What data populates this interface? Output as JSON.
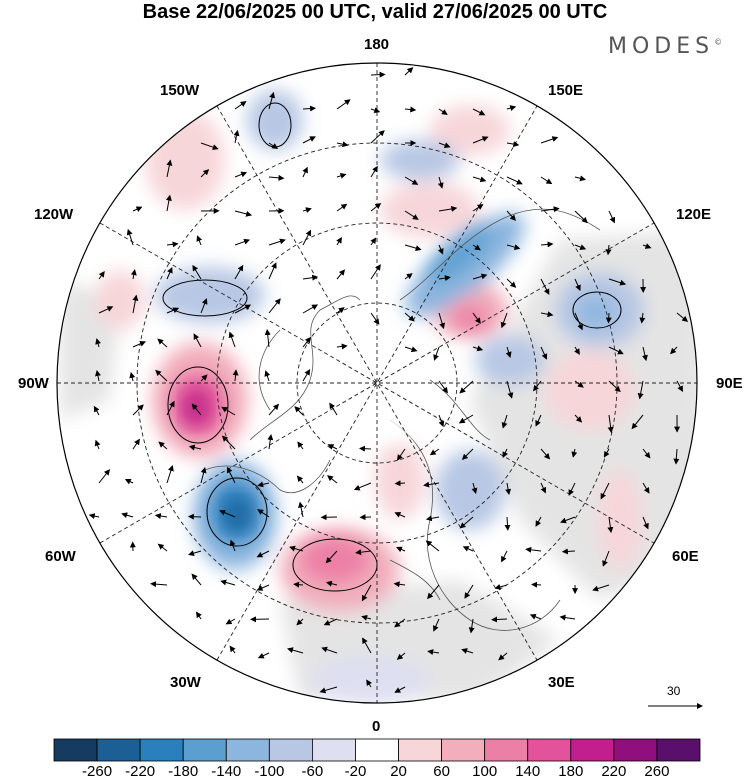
{
  "title": "Base 22/06/2025 00 UTC, valid 27/06/2025 00 UTC",
  "brand": {
    "text": "MODES",
    "mark": "©"
  },
  "longitude_labels": {
    "top": "180",
    "bottom": "0",
    "left": "90W",
    "right": "90E",
    "upper_left_outer": "150W",
    "upper_right_outer": "150E",
    "mid_left_upper": "120W",
    "mid_right_upper": "120E",
    "mid_left_lower": "60W",
    "mid_right_lower": "60E",
    "lower_left": "30W",
    "lower_right": "30E"
  },
  "reference_vector": {
    "value": "30"
  },
  "colorbar": {
    "labels": [
      "-260",
      "-220",
      "-180",
      "-140",
      "-100",
      "-60",
      "-20",
      "20",
      "60",
      "100",
      "140",
      "180",
      "220",
      "260"
    ],
    "colors": [
      "#163b60",
      "#1c5f94",
      "#2a7fbd",
      "#5b9fd0",
      "#8db6df",
      "#b7c7e4",
      "#dedff0",
      "#ffffff",
      "#f7d6d9",
      "#f2aebb",
      "#ec7fa6",
      "#e2539b",
      "#c21e8d",
      "#8e0f7d",
      "#5a0f6d"
    ]
  },
  "map_colors": {
    "positive": "#f4c3cc",
    "positive_strong": "#e8609f",
    "positive_core": "#b31a82",
    "negative": "#c6cde6",
    "negative_strong": "#6fa1d2",
    "negative_core": "#2877b6",
    "land_gray": "#e4e4e4"
  }
}
